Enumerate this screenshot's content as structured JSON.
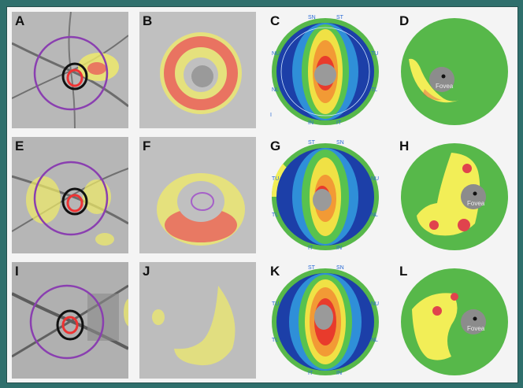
{
  "panels": {
    "A": "A",
    "B": "B",
    "C": "C",
    "D": "D",
    "E": "E",
    "F": "F",
    "G": "G",
    "H": "H",
    "I": "I",
    "J": "J",
    "K": "K",
    "L": "L"
  },
  "fovea_label": "Fovea",
  "sectors_c": [
    "SN",
    "ST",
    "NU",
    "TU",
    "NL",
    "TL",
    "IN",
    "IT",
    "I"
  ],
  "sectors_g": [
    "ST",
    "SN",
    "TU",
    "NU",
    "TL",
    "NL",
    "IT",
    "IN"
  ],
  "sectors_k": [
    "ST",
    "SN",
    "TU",
    "NU",
    "TL",
    "NL",
    "IT",
    "IN"
  ],
  "colors": {
    "frame": "#2f6f6c",
    "ring": "#8a3fb0",
    "green": "#57b84a",
    "yellow": "#f2ee57",
    "red": "#e0434d",
    "gray": "#8c8c8c"
  }
}
